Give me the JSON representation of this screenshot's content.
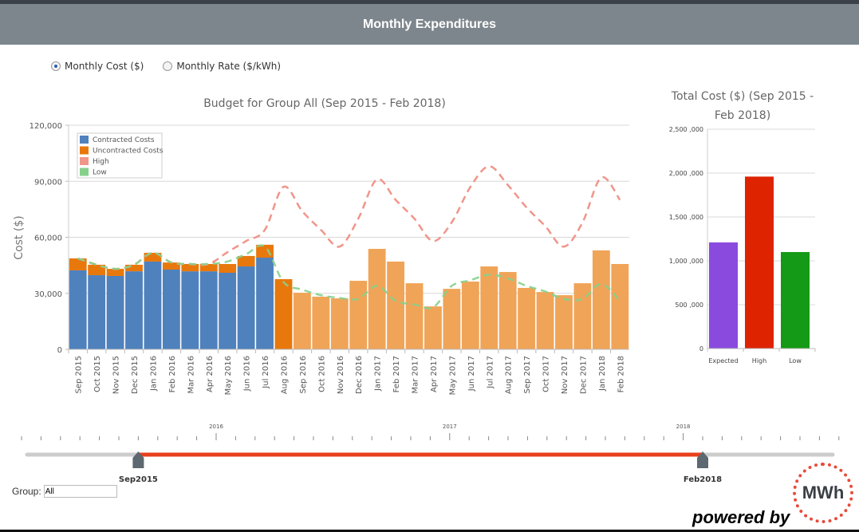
{
  "header": {
    "title": "Monthly Expenditures"
  },
  "radios": [
    {
      "label": "Monthly  Cost  ($)",
      "selected": true
    },
    {
      "label": "Monthly  Rate  ($/kWh)",
      "selected": false
    }
  ],
  "colors": {
    "contracted": "#4f81bd",
    "uncontracted": "#e8780c",
    "uncontracted_projected": "#f0a458",
    "high": "#f0958a",
    "low": "#86d08c",
    "expected_bar": "#8a4ade",
    "high_bar": "#de2300",
    "low_bar": "#149a16",
    "slider": "#e8401c"
  },
  "chart_data": [
    {
      "type": "bar",
      "title": "Budget for Group All (Sep 2015 - Feb 2018)",
      "ylabel": "Cost  ($)",
      "xlabel": "",
      "ylim": [
        0,
        120000
      ],
      "yticks": [
        0,
        30000,
        60000,
        90000,
        120000
      ],
      "ytick_labels": [
        "0",
        "30,000",
        "60,000",
        "90,000",
        "120,000"
      ],
      "legend_position": "top-left",
      "legend": [
        "Contracted Costs",
        "Uncontracted Costs",
        "High",
        "Low"
      ],
      "categories": [
        "Sep 2015",
        "Oct 2015",
        "Nov 2015",
        "Dec 2015",
        "Jan 2016",
        "Feb 2016",
        "Mar 2016",
        "Apr 2016",
        "May 2016",
        "Jun 2016",
        "Jul 2016",
        "Aug 2016",
        "Sep 2016",
        "Oct 2016",
        "Nov 2016",
        "Dec 2016",
        "Jan 2017",
        "Feb 2017",
        "Mar 2017",
        "Apr 2017",
        "May 2017",
        "Jun 2017",
        "Jul 2017",
        "Aug 2017",
        "Sep 2017",
        "Oct 2017",
        "Nov 2017",
        "Dec 2017",
        "Jan 2018",
        "Feb 2018"
      ],
      "projected_from_index": 12,
      "series": [
        {
          "name": "Contracted Costs",
          "type": "stacked-bar",
          "values": [
            42300,
            39700,
            39300,
            41800,
            47000,
            42700,
            41800,
            41800,
            41000,
            44400,
            49100,
            0,
            0,
            0,
            0,
            0,
            0,
            0,
            0,
            0,
            0,
            0,
            0,
            0,
            0,
            0,
            0,
            0,
            0,
            0
          ]
        },
        {
          "name": "Uncontracted Costs",
          "type": "stacked-bar",
          "values": [
            6400,
            5600,
            3800,
            3500,
            4700,
            3800,
            3900,
            3900,
            4700,
            5600,
            6900,
            37600,
            30300,
            28200,
            27300,
            36700,
            53800,
            47000,
            35400,
            23000,
            32400,
            36300,
            44400,
            41400,
            32900,
            30700,
            29000,
            35400,
            53000,
            45700
          ]
        },
        {
          "name": "High",
          "type": "line",
          "values": [
            48700,
            45300,
            43100,
            45300,
            51700,
            46500,
            45700,
            45700,
            52000,
            58000,
            64000,
            87000,
            74000,
            64000,
            55000,
            70000,
            91000,
            80000,
            70000,
            58000,
            68000,
            87000,
            98000,
            88000,
            76000,
            66000,
            55000,
            68000,
            92000,
            80000
          ]
        },
        {
          "name": "Low",
          "type": "line",
          "values": [
            48700,
            45300,
            43100,
            45300,
            51700,
            46500,
            45700,
            45700,
            47000,
            51000,
            55000,
            36000,
            32000,
            29000,
            27500,
            27000,
            34000,
            26000,
            24000,
            22500,
            34000,
            37000,
            40000,
            38000,
            34000,
            31000,
            27000,
            27000,
            35000,
            26000
          ]
        }
      ]
    },
    {
      "type": "bar",
      "title": "Total Cost ($) (Sep 2015 - Feb 2018)",
      "title_lines": [
        "Total Cost ($) (Sep 2015 -",
        "Feb 2018)"
      ],
      "categories": [
        "Expected",
        "High",
        "Low"
      ],
      "values": [
        1210000,
        1960000,
        1100000
      ],
      "ylim": [
        0,
        2500000
      ],
      "yticks": [
        0,
        500000,
        1000000,
        1500000,
        2000000,
        2500000
      ],
      "ytick_labels": [
        "0",
        "500 ,000",
        "1,000 ,000",
        "1,500 ,000",
        "2,000 ,000",
        "2,500 ,000"
      ]
    }
  ],
  "timeline": {
    "year_labels": [
      "2016",
      "2017",
      "2018"
    ],
    "range_start": "Sep2015",
    "range_end": "Feb2018"
  },
  "group": {
    "label": "Group:",
    "value": "All"
  },
  "footer": {
    "powered_by": "powered by",
    "logo_text": "MWh"
  }
}
